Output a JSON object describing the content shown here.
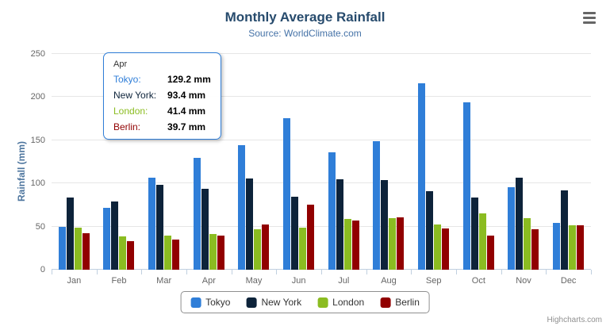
{
  "header": {
    "title": "Monthly Average Rainfall",
    "subtitle": "Source: WorldClimate.com"
  },
  "yaxis": {
    "title": "Rainfall (mm)",
    "ticks": [
      0,
      50,
      100,
      150,
      200,
      250
    ]
  },
  "chart_data": {
    "type": "bar",
    "title": "Monthly Average Rainfall",
    "subtitle": "Source: WorldClimate.com",
    "xlabel": "",
    "ylabel": "Rainfall (mm)",
    "ylim": [
      0,
      250
    ],
    "grid": true,
    "legend_position": "bottom",
    "categories": [
      "Jan",
      "Feb",
      "Mar",
      "Apr",
      "May",
      "Jun",
      "Jul",
      "Aug",
      "Sep",
      "Oct",
      "Nov",
      "Dec"
    ],
    "series": [
      {
        "name": "Tokyo",
        "color": "#2f7ed8",
        "values": [
          49.9,
          71.5,
          106.4,
          129.2,
          144.0,
          176.0,
          135.6,
          148.5,
          216.4,
          194.1,
          95.6,
          54.4
        ]
      },
      {
        "name": "New York",
        "color": "#0d233a",
        "values": [
          83.6,
          78.8,
          98.5,
          93.4,
          106.0,
          84.5,
          105.0,
          104.3,
          91.2,
          83.5,
          106.6,
          92.3
        ]
      },
      {
        "name": "London",
        "color": "#8bbc21",
        "values": [
          48.9,
          38.8,
          39.3,
          41.4,
          47.0,
          48.3,
          59.0,
          59.6,
          52.4,
          65.2,
          59.3,
          51.2
        ]
      },
      {
        "name": "Berlin",
        "color": "#910000",
        "values": [
          42.4,
          33.2,
          34.5,
          39.7,
          52.6,
          75.5,
          57.4,
          60.4,
          47.6,
          39.1,
          46.8,
          51.1
        ]
      }
    ]
  },
  "tooltip": {
    "header": "Apr",
    "rows": [
      {
        "name": "Tokyo:",
        "value": "129.2 mm",
        "color": "#2f7ed8"
      },
      {
        "name": "New York:",
        "value": "93.4 mm",
        "color": "#0d233a"
      },
      {
        "name": "London:",
        "value": "41.4 mm",
        "color": "#8bbc21"
      },
      {
        "name": "Berlin:",
        "value": "39.7 mm",
        "color": "#910000"
      }
    ],
    "border_color": "#2f7ed8"
  },
  "legend": {
    "items": [
      {
        "label": "Tokyo",
        "color": "#2f7ed8"
      },
      {
        "label": "New York",
        "color": "#0d233a"
      },
      {
        "label": "London",
        "color": "#8bbc21"
      },
      {
        "label": "Berlin",
        "color": "#910000"
      }
    ]
  },
  "credits": "Highcharts.com"
}
